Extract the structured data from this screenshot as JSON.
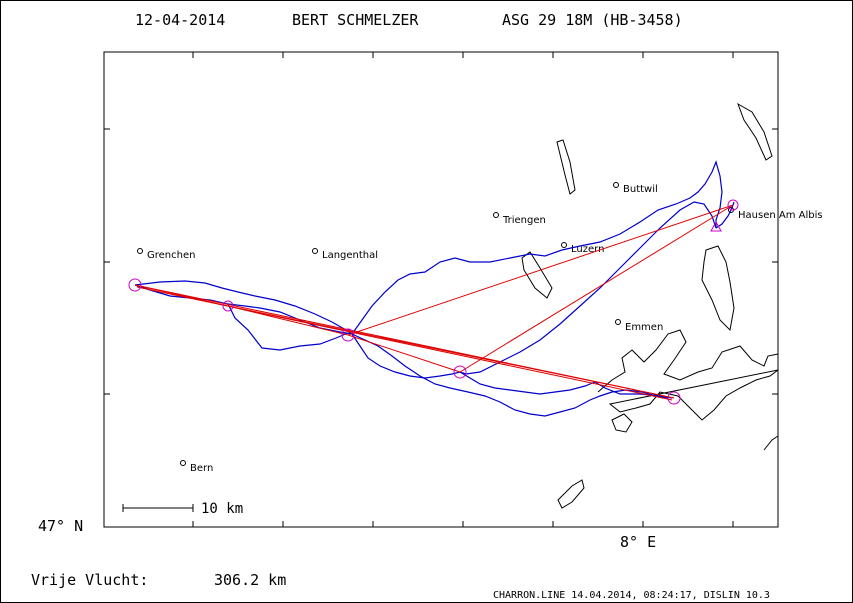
{
  "header": {
    "date": "12-04-2014",
    "pilot": "BERT SCHMELZER",
    "glider": "ASG 29 18M (HB-3458)"
  },
  "axes": {
    "lat_label": "47° N",
    "lon_label": "8° E"
  },
  "scale_bar": {
    "label": "10 km"
  },
  "footer": {
    "distance_label": "Vrije Vlucht:",
    "distance_value": "306.2 km",
    "credits": "CHARRON.LINE 14.04.2014, 08:24:17, DISLIN 10.3"
  },
  "places": [
    {
      "name": "Grenchen"
    },
    {
      "name": "Langenthal"
    },
    {
      "name": "Triengen"
    },
    {
      "name": "Buttwil"
    },
    {
      "name": "Luzern"
    },
    {
      "name": "Hausen Am Albis"
    },
    {
      "name": "Emmen"
    },
    {
      "name": "Bern"
    }
  ],
  "colors": {
    "track": "#0000cc",
    "task": "#e00000",
    "turnpoint": "#cc00cc",
    "lakes": "#000000"
  }
}
